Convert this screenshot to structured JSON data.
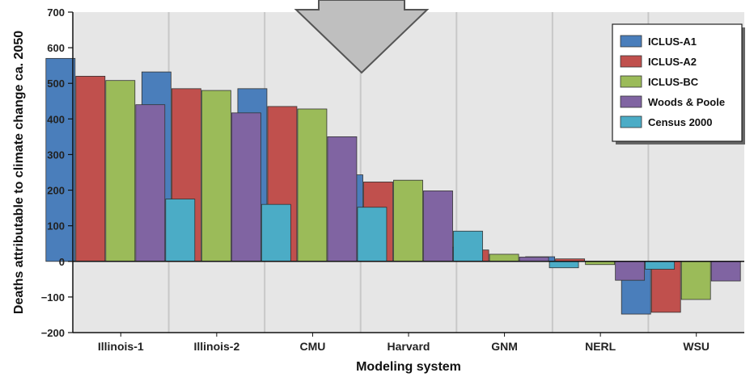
{
  "chart_data": {
    "type": "bar",
    "title": "",
    "xlabel": "Modeling system",
    "ylabel": "Deaths attributable to climate change ca. 2050",
    "ylim": [
      -200,
      700
    ],
    "yticks": [
      -200,
      -100,
      0,
      100,
      200,
      300,
      400,
      500,
      600,
      700
    ],
    "grid": "vertical category separators",
    "legend_position": "top-right",
    "categories": [
      "Illinois-1",
      "Illinois-2",
      "CMU",
      "Harvard",
      "GNM",
      "NERL",
      "WSU"
    ],
    "series": [
      {
        "name": "ICLUS-A1",
        "color": "#4a7ebb",
        "values": [
          570,
          532,
          485,
          243,
          40,
          13,
          -148
        ]
      },
      {
        "name": "ICLUS-A2",
        "color": "#c0504d",
        "values": [
          520,
          485,
          435,
          223,
          32,
          7,
          -143
        ]
      },
      {
        "name": "ICLUS-BC",
        "color": "#9bbb59",
        "values": [
          508,
          480,
          428,
          228,
          20,
          -9,
          -107
        ]
      },
      {
        "name": "Woods & Poole",
        "color": "#8064a2",
        "values": [
          440,
          417,
          350,
          198,
          12,
          -53,
          -55
        ]
      },
      {
        "name": "Census 2000",
        "color": "#4bacc6",
        "values": [
          175,
          160,
          152,
          85,
          -18,
          -22,
          null
        ]
      }
    ]
  },
  "decoration": {
    "arrow_fill": "#bfbfbf",
    "arrow_stroke": "#555555",
    "plot_background": "#e6e6e6"
  }
}
